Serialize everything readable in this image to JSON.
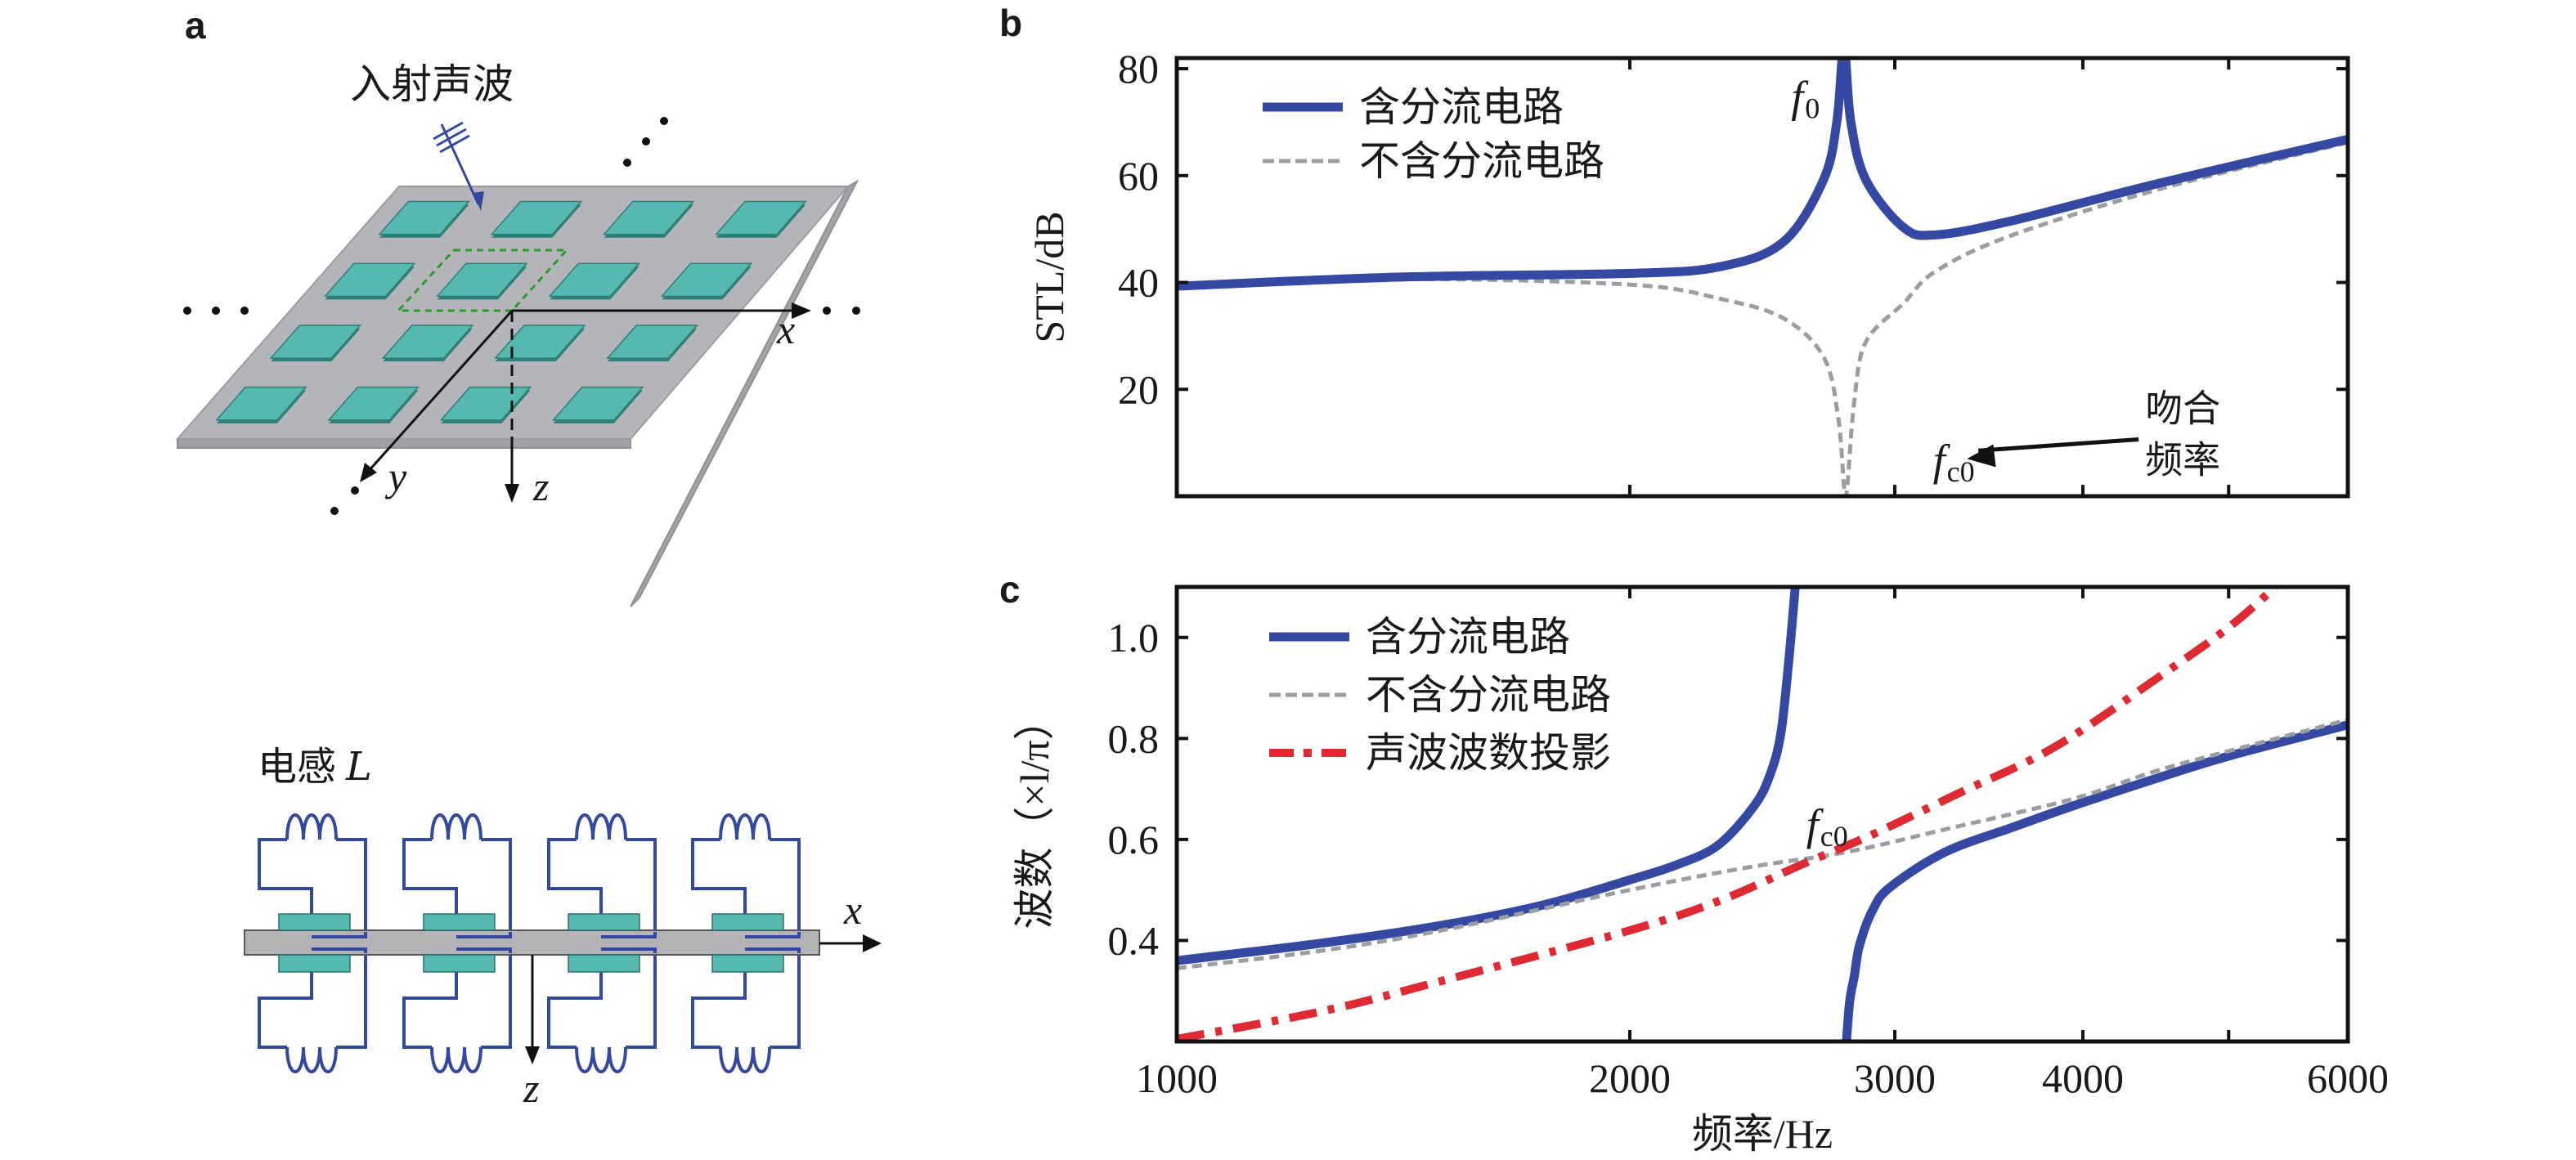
{
  "panels": {
    "a": {
      "label": "a",
      "incident_wave_label": "入射声波",
      "axis_x": "x",
      "axis_y": "y",
      "axis_z": "z",
      "ellipsis": "• • •",
      "patch_rows": 4,
      "patch_cols": 4,
      "colors": {
        "plate": "#b4b5b8",
        "plate_edge": "#8e9094",
        "patch": "#55b9b0",
        "patch_edge": "#2f7f78",
        "unit_cell": "#2e9a2e",
        "wave_arrow": "#3548a0"
      }
    },
    "circuit": {
      "inductor_label": "电感",
      "inductor_symbol": "L",
      "axis_x": "x",
      "axis_z": "z",
      "units": 4,
      "colors": {
        "beam": "#b3b3b5",
        "pad": "#55b9b0",
        "wire": "#3548a0"
      }
    },
    "b": {
      "label": "b"
    },
    "c": {
      "label": "c"
    }
  },
  "colors": {
    "shunt": "#3549a3",
    "no_shunt": "#9a9da2",
    "acoustic": "#dd2a33",
    "text": "#1a1a1a"
  },
  "chart_data": [
    {
      "id": "b",
      "type": "line",
      "title": "",
      "xlabel": "频率/Hz",
      "ylabel": "STL/dB",
      "xscale": "log",
      "xlim": [
        1000,
        6000
      ],
      "ylim": [
        0,
        82
      ],
      "xticks": [
        1000,
        2000,
        3000,
        4000,
        5000,
        6000
      ],
      "xtick_labels": [],
      "yticks": [
        20,
        40,
        60,
        80
      ],
      "ytick_labels": [
        "20",
        "40",
        "60",
        "80"
      ],
      "grid": false,
      "legend_position": "top-left",
      "series": [
        {
          "name": "含分流电路",
          "style": "solid-thick",
          "color_key": "shunt",
          "points": [
            [
              1000,
              39.3
            ],
            [
              1400,
              41.0
            ],
            [
              2000,
              41.7
            ],
            [
              2300,
              43.0
            ],
            [
              2530,
              47.6
            ],
            [
              2690,
              59.2
            ],
            [
              2745,
              70
            ],
            [
              2768,
              82
            ],
            [
              2782,
              82
            ],
            [
              2805,
              70
            ],
            [
              2870,
              59.2
            ],
            [
              3040,
              50.3
            ],
            [
              3190,
              48.9
            ],
            [
              3570,
              51.4
            ],
            [
              4500,
              58.6
            ],
            [
              6000,
              66.8
            ]
          ]
        },
        {
          "name": "不含分流电路",
          "style": "dashed",
          "color_key": "no_shunt",
          "points": [
            [
              1000,
              39.0
            ],
            [
              1400,
              40.6
            ],
            [
              2000,
              39.6
            ],
            [
              2300,
              36.9
            ],
            [
              2530,
              33.3
            ],
            [
              2690,
              26.1
            ],
            [
              2750,
              15.1
            ],
            [
              2775,
              2
            ],
            [
              2780,
              0
            ],
            [
              2790,
              2
            ],
            [
              2820,
              17.9
            ],
            [
              2870,
              28.9
            ],
            [
              3040,
              36.1
            ],
            [
              3190,
              42.0
            ],
            [
              3570,
              48.6
            ],
            [
              4500,
              57.5
            ],
            [
              6000,
              66.2
            ]
          ]
        }
      ],
      "annotations": [
        {
          "text": "f",
          "sub": "0",
          "italic": true,
          "at": [
            2560,
            72
          ]
        },
        {
          "text": "f",
          "sub": "c0",
          "italic": true,
          "at": [
            3180,
            4
          ]
        },
        {
          "text_lines": [
            "吻合",
            "频率"
          ],
          "at": [
            4400,
            14
          ],
          "arrow_to": [
            3350,
            7
          ]
        }
      ]
    },
    {
      "id": "c",
      "type": "line",
      "title": "",
      "xlabel": "频率/Hz",
      "ylabel": "波数（×l/π）",
      "xscale": "log",
      "xlim": [
        1000,
        6000
      ],
      "ylim": [
        0.2,
        1.1
      ],
      "xticks": [
        1000,
        2000,
        3000,
        4000,
        5000,
        6000
      ],
      "xtick_labels": [
        "1000",
        "2000",
        "3000",
        "4000",
        "",
        "6000"
      ],
      "yticks": [
        0.4,
        0.6,
        0.8,
        1.0
      ],
      "ytick_labels": [
        "0.4",
        "0.6",
        "0.8",
        "1.0"
      ],
      "grid": false,
      "legend_position": "top-left",
      "series": [
        {
          "name": "含分流电路",
          "style": "solid-thick",
          "color_key": "shunt",
          "branches": [
            [
              [
                1000,
                0.36
              ],
              [
                1250,
                0.395
              ],
              [
                1500,
                0.43
              ],
              [
                1750,
                0.47
              ],
              [
                2000,
                0.52
              ],
              [
                2150,
                0.55
              ],
              [
                2290,
                0.589
              ],
              [
                2420,
                0.667
              ],
              [
                2480,
                0.73
              ],
              [
                2520,
                0.81
              ],
              [
                2550,
                0.95
              ],
              [
                2576,
                1.1
              ]
            ],
            [
              [
                2786,
                0.2
              ],
              [
                2800,
                0.28
              ],
              [
                2820,
                0.33
              ],
              [
                2842,
                0.39
              ],
              [
                2900,
                0.46
              ],
              [
                2980,
                0.506
              ],
              [
                3240,
                0.575
              ],
              [
                3600,
                0.625
              ],
              [
                3936,
                0.666
              ],
              [
                4467,
                0.72
              ],
              [
                5000,
                0.765
              ],
              [
                6000,
                0.827
              ]
            ]
          ]
        },
        {
          "name": "不含分流电路",
          "style": "dashed",
          "color_key": "no_shunt",
          "branches": [
            [
              [
                1000,
                0.345
              ],
              [
                1250,
                0.38
              ],
              [
                1500,
                0.42
              ],
              [
                2000,
                0.5
              ],
              [
                2400,
                0.545
              ],
              [
                2786,
                0.575
              ],
              [
                3240,
                0.62
              ],
              [
                3936,
                0.68
              ],
              [
                4467,
                0.735
              ],
              [
                5000,
                0.775
              ],
              [
                6000,
                0.837
              ]
            ]
          ]
        },
        {
          "name": "声波波数投影",
          "style": "dash-dot",
          "color_key": "acoustic",
          "branches": [
            [
              [
                1000,
                0.205
              ],
              [
                1250,
                0.26
              ],
              [
                1500,
                0.32
              ],
              [
                2000,
                0.42
              ],
              [
                2300,
                0.48
              ],
              [
                2600,
                0.55
              ],
              [
                2900,
                0.61
              ],
              [
                3300,
                0.69
              ],
              [
                3836,
                0.784
              ],
              [
                4530,
                0.929
              ],
              [
                5000,
                1.02
              ],
              [
                5370,
                1.1
              ]
            ]
          ]
        }
      ],
      "annotations": [
        {
          "text": "f",
          "sub": "c0",
          "italic": true,
          "at": [
            2620,
            0.6
          ]
        }
      ]
    }
  ]
}
